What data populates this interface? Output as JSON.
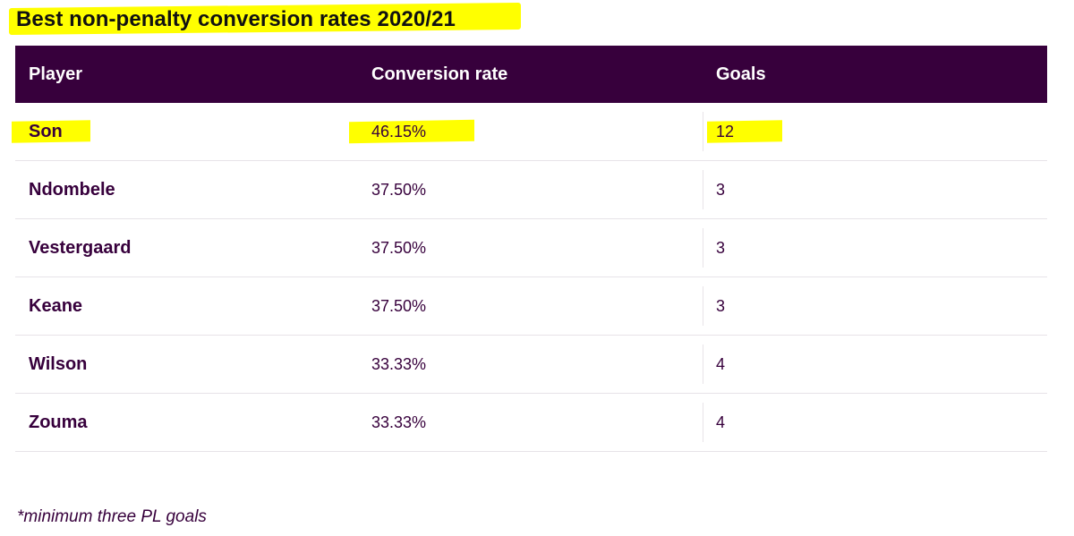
{
  "title": "Best non-penalty conversion rates 2020/21",
  "table": {
    "headers": {
      "player": "Player",
      "rate": "Conversion rate",
      "goals": "Goals"
    },
    "rows": [
      {
        "player": "Son",
        "rate": "46.15%",
        "goals": "12"
      },
      {
        "player": "Ndombele",
        "rate": "37.50%",
        "goals": "3"
      },
      {
        "player": "Vestergaard",
        "rate": "37.50%",
        "goals": "3"
      },
      {
        "player": "Keane",
        "rate": "37.50%",
        "goals": "3"
      },
      {
        "player": "Wilson",
        "rate": "33.33%",
        "goals": "4"
      },
      {
        "player": "Zouma",
        "rate": "33.33%",
        "goals": "4"
      }
    ]
  },
  "footnote": "*minimum three PL goals",
  "colors": {
    "header_bg": "#37003c",
    "highlight": "#ffff00",
    "text": "#37003c"
  }
}
